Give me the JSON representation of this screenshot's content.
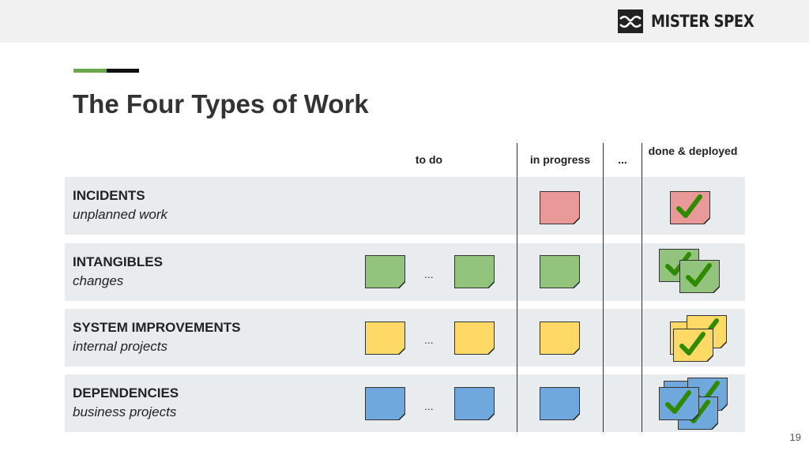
{
  "brand": {
    "logo_text": "MISTER SPEX",
    "logo_icon": "glasses-icon"
  },
  "slide": {
    "title": "The Four Types of Work",
    "page_number": "19"
  },
  "columns": {
    "todo": "to do",
    "in_progress": "in progress",
    "ellipsis": "...",
    "done": "done & deployed"
  },
  "rows": [
    {
      "title": "INCIDENTS",
      "subtitle": "unplanned work",
      "color": "#ea9999"
    },
    {
      "title": "INTANGIBLES",
      "subtitle": "changes",
      "color": "#93c47d"
    },
    {
      "title": "SYSTEM IMPROVEMENTS",
      "subtitle": "internal projects",
      "color": "#ffd966"
    },
    {
      "title": "DEPENDENCIES",
      "subtitle": "business projects",
      "color": "#6fa8dc"
    }
  ],
  "ellipsis": "...",
  "colors": {
    "accent_green": "#6aa84f",
    "accent_black": "#111111",
    "check_green": "#2e8b00",
    "row_background": "#e8ecef",
    "topbar": "#f1f1f1"
  }
}
